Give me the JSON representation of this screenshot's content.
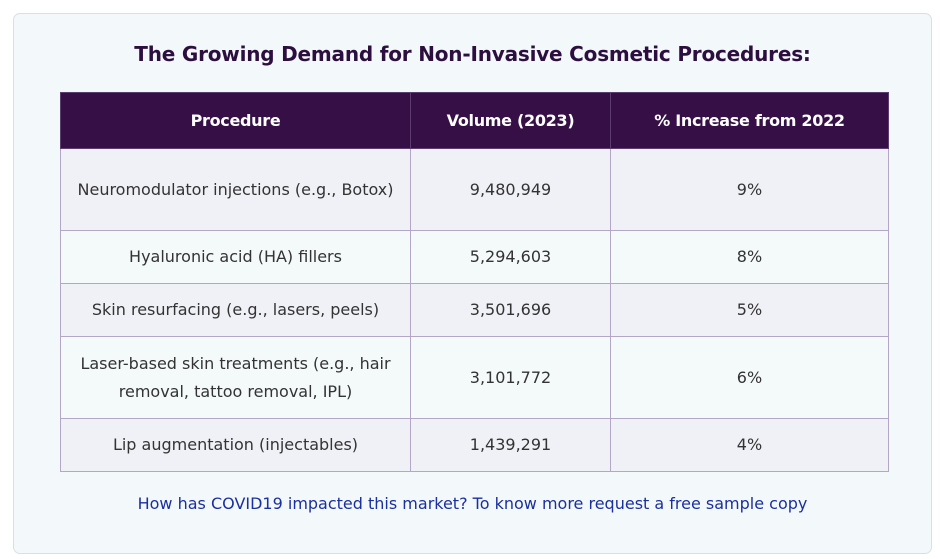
{
  "title": "The Growing Demand for Non-Invasive Cosmetic Procedures:",
  "table": {
    "headers": [
      "Procedure",
      "Volume (2023)",
      "% Increase from 2022"
    ],
    "rows": [
      [
        "Neuromodulator injections (e.g., Botox)",
        "9,480,949",
        "9%"
      ],
      [
        "Hyaluronic acid (HA) fillers",
        "5,294,603",
        "8%"
      ],
      [
        "Skin resurfacing (e.g., lasers, peels)",
        "3,501,696",
        "5%"
      ],
      [
        "Laser-based skin treatments (e.g., hair removal, tattoo removal, IPL)",
        "3,101,772",
        "6%"
      ],
      [
        "Lip augmentation (injectables)",
        "1,439,291",
        "4%"
      ]
    ]
  },
  "cta_text": "How has COVID19 impacted this market? To know more request a free sample copy",
  "colors": {
    "header_bg": "#360f47",
    "title": "#2d0f3f",
    "link": "#1a2fa0"
  }
}
